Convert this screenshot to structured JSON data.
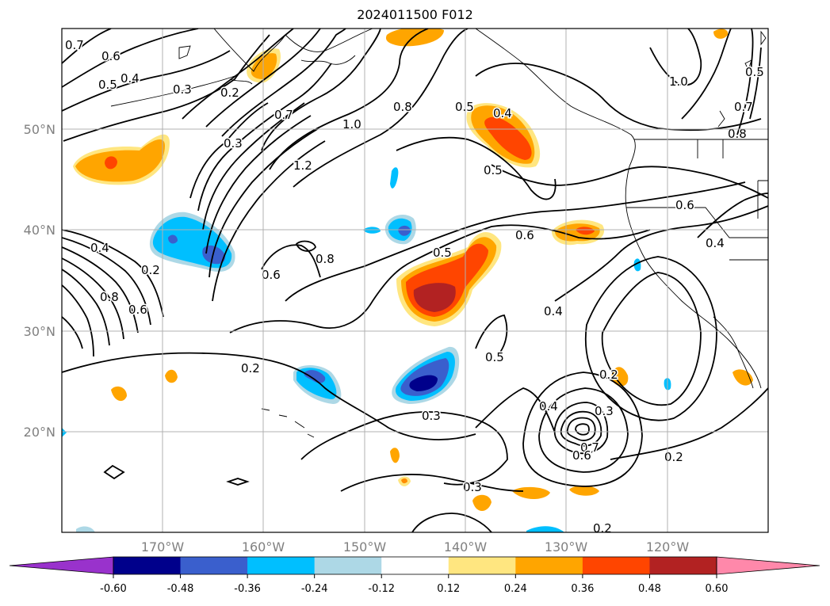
{
  "title": "2024011500 F012",
  "lat_labels": [
    "50°N",
    "40°N",
    "30°N",
    "20°N"
  ],
  "lon_labels": [
    "170°W",
    "160°W",
    "150°W",
    "140°W",
    "130°W",
    "120°W"
  ],
  "colorbar": {
    "ticks": [
      "-0.60",
      "-0.48",
      "-0.36",
      "-0.24",
      "-0.12",
      "0.12",
      "0.24",
      "0.36",
      "0.48",
      "0.60"
    ],
    "colors": [
      "#9932cc",
      "#00008b",
      "#3a5fcd",
      "#00bfff",
      "#add8e6",
      "#ffffff",
      "#ffe680",
      "#ffa500",
      "#ff4500",
      "#b22222",
      "#ff88aa"
    ]
  },
  "contour_labels": [
    "0.7",
    "0.6",
    "0.5",
    "0.4",
    "0.3",
    "0.2",
    "0.3",
    "0.7",
    "1.2",
    "1.0",
    "0.8",
    "0.8",
    "0.6",
    "0.4",
    "0.5",
    "0.5",
    "0.6",
    "0.4",
    "0.5",
    "1.0",
    "0.7",
    "0.8",
    "0.6",
    "0.4",
    "0.5",
    "0.4",
    "0.2",
    "0.8",
    "0.2",
    "0.3",
    "0.4",
    "0.3",
    "0.7",
    "0.6",
    "0.2",
    "0.3",
    "0.2",
    "0.5",
    "0.6",
    "0.2"
  ]
}
